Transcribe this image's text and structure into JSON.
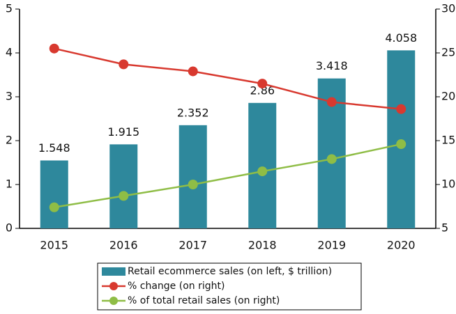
{
  "chart_data": {
    "type": "bar",
    "categories": [
      "2015",
      "2016",
      "2017",
      "2018",
      "2019",
      "2020"
    ],
    "series": [
      {
        "name": "Retail ecommerce sales (on left, $ trillion)",
        "type": "bar",
        "color": "#2e889c",
        "values": [
          1.548,
          1.915,
          2.352,
          2.86,
          3.418,
          4.058
        ]
      },
      {
        "name": "% change (on right)",
        "type": "line",
        "axis": "y2",
        "color": "#d8392f",
        "values": [
          25.5,
          23.7,
          22.9,
          21.5,
          19.4,
          18.6
        ]
      },
      {
        "name": "% of total retail sales (on right)",
        "type": "line",
        "axis": "y2",
        "color": "#8fbd46",
        "values": [
          7.4,
          8.7,
          10.0,
          11.5,
          12.9,
          14.6
        ]
      }
    ],
    "ylim": [
      0,
      5
    ],
    "yticks": [
      0,
      1,
      2,
      3,
      4,
      5
    ],
    "y2lim": [
      5,
      30
    ],
    "y2ticks": [
      5,
      10,
      15,
      20,
      25,
      30
    ],
    "grid": false,
    "legend": "bottom"
  }
}
